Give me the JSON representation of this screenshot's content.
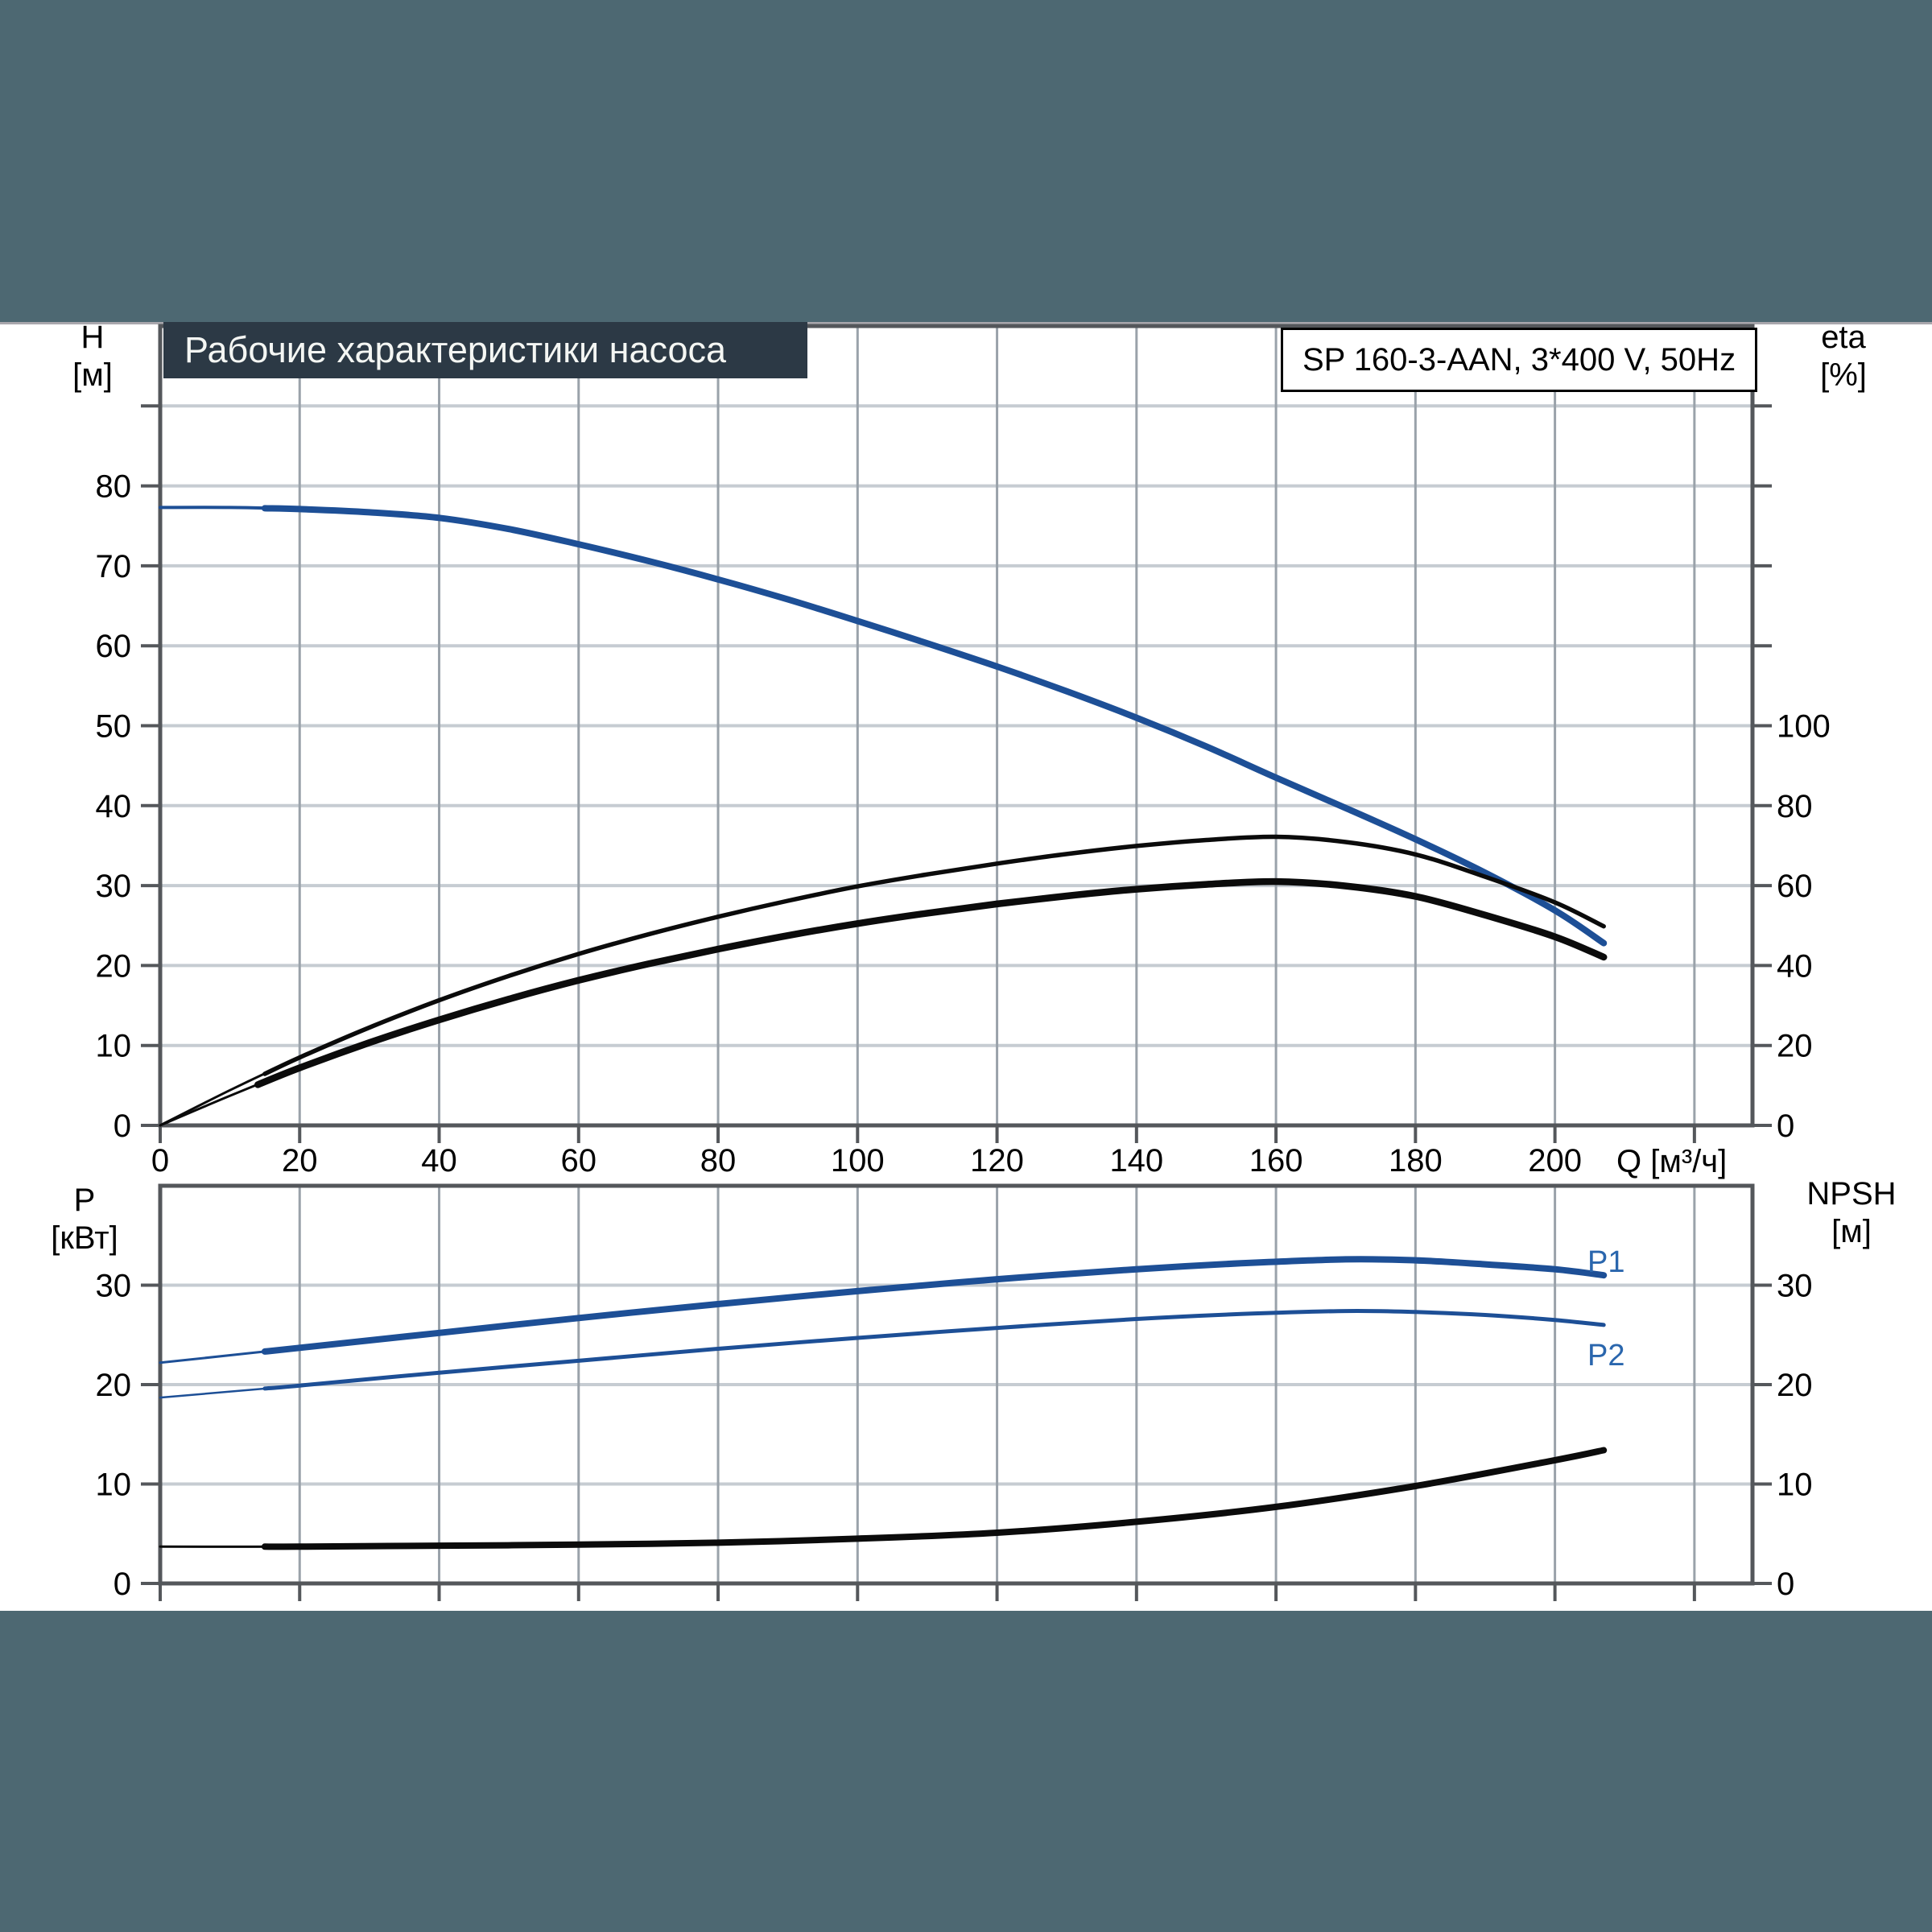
{
  "colors": {
    "band": "#4d6872",
    "title_bg": "#2c3945",
    "title_fg": "#f4f6f3",
    "curve_blue": "#1d4f96",
    "label_blue": "#2a66ad",
    "curve_black": "#0b0b0b",
    "grid_vertical": "#9aa2aa",
    "grid_horizontal": "#c6ccd2",
    "axis": "#54575b"
  },
  "banner": {
    "text": "Рабочие характеристики насоса"
  },
  "pump_box": {
    "text": "SP 160-3-AAN, 3*400 V, 50Hz"
  },
  "axis_titles": {
    "h": {
      "line1": "H",
      "line2": "[м]"
    },
    "eta": {
      "line1": "eta",
      "line2": "[%]"
    },
    "q": {
      "text": "Q [м³/ч]"
    },
    "p": {
      "line1": "P",
      "line2": "[кВт]"
    },
    "npsh": {
      "line1": "NPSH",
      "line2": "[м]"
    }
  },
  "curve_labels": {
    "p1": "P1",
    "p2": "P2"
  },
  "chart_data": [
    {
      "type": "line",
      "title": "Рабочие характеристики насоса",
      "pump": "SP 160-3-AAN, 3*400 V, 50Hz",
      "x": {
        "label": "Q [м³/ч]",
        "min": 0,
        "max": 228,
        "grid_step": 20,
        "labeled_ticks": [
          0,
          20,
          40,
          60,
          80,
          100,
          120,
          140,
          160,
          180,
          200
        ],
        "unlabeled_gridline": 220,
        "show_tick_labels": true
      },
      "y_left": {
        "label": "H [м]",
        "min": 0,
        "max": 100,
        "labeled_ticks": [
          0,
          10,
          20,
          30,
          40,
          50,
          60,
          70,
          80
        ],
        "grid_step": 10
      },
      "y_right": {
        "label": "eta [%]",
        "labeled_ticks": [
          0,
          20,
          40,
          60,
          80,
          100
        ],
        "right_units_per_left_unit": 2
      },
      "operating_range": [
        15,
        207
      ],
      "series": [
        {
          "id": "head",
          "axis": "left",
          "color": "#1d4f96",
          "width": 8,
          "width_thin": 4,
          "thin_until": 15,
          "points": [
            [
              0,
              77.3
            ],
            [
              10,
              77.3
            ],
            [
              20,
              77.1
            ],
            [
              30,
              76.7
            ],
            [
              40,
              76.0
            ],
            [
              50,
              74.6
            ],
            [
              60,
              72.7
            ],
            [
              70,
              70.6
            ],
            [
              80,
              68.3
            ],
            [
              90,
              65.8
            ],
            [
              100,
              63.1
            ],
            [
              110,
              60.3
            ],
            [
              120,
              57.4
            ],
            [
              130,
              54.3
            ],
            [
              140,
              51.0
            ],
            [
              150,
              47.4
            ],
            [
              160,
              43.5
            ],
            [
              170,
              39.7
            ],
            [
              180,
              35.8
            ],
            [
              190,
              31.6
            ],
            [
              200,
              26.9
            ],
            [
              207,
              22.8
            ]
          ]
        },
        {
          "id": "eta_pump",
          "axis": "right",
          "color": "#0b0b0b",
          "width": 5.5,
          "width_thin": 3,
          "thin_until": 15,
          "points": [
            [
              0,
              0
            ],
            [
              10,
              8.8
            ],
            [
              20,
              17.0
            ],
            [
              30,
              24.5
            ],
            [
              40,
              31.3
            ],
            [
              50,
              37.4
            ],
            [
              60,
              42.9
            ],
            [
              70,
              47.8
            ],
            [
              80,
              52.2
            ],
            [
              90,
              56.2
            ],
            [
              100,
              59.8
            ],
            [
              110,
              62.8
            ],
            [
              120,
              65.5
            ],
            [
              130,
              67.9
            ],
            [
              140,
              69.9
            ],
            [
              150,
              71.4
            ],
            [
              160,
              72.2
            ],
            [
              170,
              70.9
            ],
            [
              180,
              67.8
            ],
            [
              190,
              62.2
            ],
            [
              200,
              55.8
            ],
            [
              207,
              49.8
            ]
          ]
        },
        {
          "id": "eta_total",
          "axis": "right",
          "color": "#0b0b0b",
          "width": 8.5,
          "width_thin": 3,
          "thin_until": 14,
          "points": [
            [
              0,
              0
            ],
            [
              10,
              7.4
            ],
            [
              20,
              14.4
            ],
            [
              30,
              20.7
            ],
            [
              40,
              26.4
            ],
            [
              50,
              31.6
            ],
            [
              60,
              36.3
            ],
            [
              70,
              40.4
            ],
            [
              80,
              44.1
            ],
            [
              90,
              47.5
            ],
            [
              100,
              50.5
            ],
            [
              110,
              53.1
            ],
            [
              120,
              55.4
            ],
            [
              130,
              57.4
            ],
            [
              140,
              59.1
            ],
            [
              150,
              60.3
            ],
            [
              160,
              61.0
            ],
            [
              170,
              59.9
            ],
            [
              180,
              57.3
            ],
            [
              190,
              52.6
            ],
            [
              200,
              47.2
            ],
            [
              207,
              42.1
            ]
          ]
        }
      ]
    },
    {
      "type": "line",
      "x": {
        "min": 0,
        "max": 228,
        "grid_step": 20,
        "labeled_ticks": [],
        "unlabeled_gridline": 220,
        "show_tick_labels": false
      },
      "y_left": {
        "label": "P [кВт]",
        "min": 0,
        "max": 40,
        "labeled_ticks": [
          0,
          10,
          20,
          30
        ],
        "grid_step": 10
      },
      "y_right": {
        "label": "NPSH [м]",
        "labeled_ticks": [
          0,
          10,
          20,
          30
        ],
        "right_units_per_left_unit": 1
      },
      "operating_range": [
        15,
        207
      ],
      "series": [
        {
          "id": "p1",
          "label": "P1",
          "axis": "left",
          "color": "#1d4f96",
          "width": 8,
          "width_thin": 3,
          "thin_until": 15,
          "points": [
            [
              0,
              22.2
            ],
            [
              20,
              23.7
            ],
            [
              40,
              25.2
            ],
            [
              60,
              26.7
            ],
            [
              80,
              28.1
            ],
            [
              100,
              29.4
            ],
            [
              120,
              30.6
            ],
            [
              140,
              31.6
            ],
            [
              155,
              32.2
            ],
            [
              170,
              32.6
            ],
            [
              180,
              32.5
            ],
            [
              190,
              32.1
            ],
            [
              200,
              31.6
            ],
            [
              207,
              31.0
            ]
          ]
        },
        {
          "id": "p2",
          "label": "P2",
          "axis": "left",
          "color": "#1d4f96",
          "width": 5,
          "width_thin": 2.5,
          "thin_until": 15,
          "points": [
            [
              0,
              18.7
            ],
            [
              20,
              19.9
            ],
            [
              40,
              21.2
            ],
            [
              60,
              22.4
            ],
            [
              80,
              23.6
            ],
            [
              100,
              24.7
            ],
            [
              120,
              25.7
            ],
            [
              140,
              26.6
            ],
            [
              155,
              27.1
            ],
            [
              170,
              27.4
            ],
            [
              180,
              27.3
            ],
            [
              190,
              27.0
            ],
            [
              200,
              26.5
            ],
            [
              207,
              26.0
            ]
          ]
        },
        {
          "id": "npsh",
          "axis": "right",
          "color": "#0b0b0b",
          "width": 8,
          "width_thin": 3,
          "thin_until": 15,
          "points": [
            [
              0,
              3.7
            ],
            [
              20,
              3.7
            ],
            [
              40,
              3.8
            ],
            [
              60,
              3.9
            ],
            [
              80,
              4.1
            ],
            [
              100,
              4.5
            ],
            [
              120,
              5.1
            ],
            [
              140,
              6.2
            ],
            [
              160,
              7.7
            ],
            [
              180,
              9.8
            ],
            [
              200,
              12.4
            ],
            [
              207,
              13.4
            ]
          ]
        }
      ]
    }
  ]
}
